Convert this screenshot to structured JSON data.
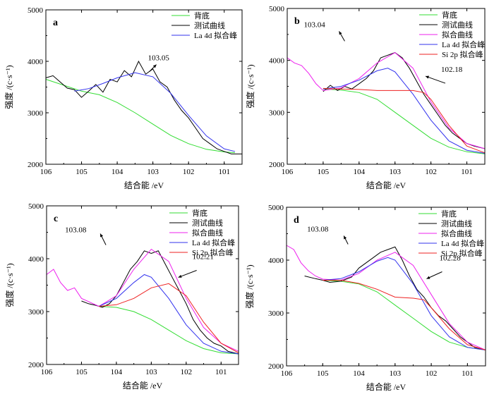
{
  "chart_data": [
    {
      "type": "line",
      "panel_label": "a",
      "xlabel": "结合能 /eV",
      "ylabel": "强度 /(c·s⁻¹)",
      "xlim": [
        106,
        100.5
      ],
      "ylim": [
        2000,
        5000
      ],
      "xticks": [
        106,
        105,
        104,
        103,
        102,
        101
      ],
      "yticks": [
        2000,
        3000,
        4000,
        5000
      ],
      "legend_position": "top-right",
      "series": [
        {
          "name": "背底",
          "color": "#33dd33",
          "x": [
            106,
            105,
            104.5,
            104,
            103.5,
            103,
            102.5,
            102,
            101.5,
            101,
            100.7
          ],
          "y": [
            3650,
            3420,
            3350,
            3200,
            3000,
            2780,
            2560,
            2400,
            2290,
            2240,
            2225
          ]
        },
        {
          "name": "测试曲线",
          "color": "#000000",
          "x": [
            106,
            105.8,
            105.6,
            105.4,
            105.2,
            105,
            104.8,
            104.6,
            104.4,
            104.2,
            104,
            103.8,
            103.6,
            103.4,
            103.2,
            103,
            102.8,
            102.6,
            102.4,
            102.2,
            102,
            101.8,
            101.6,
            101.4,
            101.2,
            101,
            100.8,
            100.5
          ],
          "y": [
            3680,
            3720,
            3600,
            3480,
            3450,
            3300,
            3420,
            3550,
            3400,
            3650,
            3600,
            3820,
            3700,
            4000,
            3750,
            3850,
            3600,
            3500,
            3250,
            3050,
            2900,
            2700,
            2500,
            2400,
            2300,
            2250,
            2200,
            2200
          ]
        },
        {
          "name": "La 4d 拟合峰",
          "color": "#3333ee",
          "x": [
            105.2,
            104.8,
            104.4,
            104,
            103.5,
            103,
            102.5,
            102,
            101.5,
            101,
            100.7
          ],
          "y": [
            3420,
            3470,
            3570,
            3680,
            3780,
            3700,
            3380,
            2950,
            2550,
            2300,
            2250
          ]
        }
      ],
      "annotations": [
        {
          "text": "103.05",
          "x": 103.1,
          "y": 3800
        }
      ]
    },
    {
      "type": "line",
      "panel_label": "b",
      "xlabel": "结合能 /eV",
      "ylabel": "强度 /(c·s⁻¹)",
      "xlim": [
        106,
        100.5
      ],
      "ylim": [
        2000,
        5000
      ],
      "xticks": [
        106,
        105,
        104,
        103,
        102,
        101
      ],
      "yticks": [
        2000,
        3000,
        4000,
        5000
      ],
      "legend_position": "top-right",
      "series": [
        {
          "name": "背底",
          "color": "#33dd33",
          "x": [
            105,
            104.5,
            104,
            103.5,
            103,
            102.5,
            102,
            101.5,
            101,
            100.5
          ],
          "y": [
            3450,
            3430,
            3380,
            3250,
            3000,
            2750,
            2500,
            2330,
            2240,
            2200
          ]
        },
        {
          "name": "测试曲线",
          "color": "#000000",
          "x": [
            105,
            104.8,
            104.6,
            104.4,
            104.2,
            104,
            103.8,
            103.6,
            103.4,
            103.2,
            103,
            102.8,
            102.6,
            102.4,
            102.2,
            102,
            101.8,
            101.6,
            101.4,
            101.2,
            101,
            100.8,
            100.5
          ],
          "y": [
            3400,
            3520,
            3420,
            3500,
            3450,
            3550,
            3650,
            3800,
            4050,
            4100,
            4150,
            4050,
            3850,
            3600,
            3350,
            3150,
            2950,
            2750,
            2600,
            2500,
            2400,
            2350,
            2300
          ]
        },
        {
          "name": "拟合曲线",
          "color": "#ee22ee",
          "x": [
            106,
            105.8,
            105.6,
            105.4,
            105.2,
            105,
            104.5,
            104,
            103.5,
            103,
            102.5,
            102,
            101.5,
            101,
            100.5
          ],
          "y": [
            4050,
            3950,
            3900,
            3750,
            3550,
            3420,
            3470,
            3650,
            3950,
            4150,
            3850,
            3200,
            2700,
            2400,
            2300
          ]
        },
        {
          "name": "La 4d 拟合峰",
          "color": "#3333ee",
          "x": [
            105,
            104.5,
            104,
            103.5,
            103.2,
            103,
            102.5,
            102,
            101.5,
            101,
            100.5
          ],
          "y": [
            3450,
            3500,
            3620,
            3800,
            3850,
            3780,
            3350,
            2850,
            2450,
            2270,
            2210
          ]
        },
        {
          "name": "Si 2p 拟合峰",
          "color": "#ee2222",
          "x": [
            105,
            104.5,
            104,
            103.5,
            103,
            102.5,
            102.2,
            102,
            101.5,
            101,
            100.5
          ],
          "y": [
            3460,
            3450,
            3440,
            3420,
            3420,
            3420,
            3380,
            3250,
            2750,
            2350,
            2220
          ]
        }
      ],
      "annotations": [
        {
          "text": "103.04",
          "x": 104.4,
          "y": 4370
        },
        {
          "text": "102.18",
          "x": 101.6,
          "y": 3560
        }
      ]
    },
    {
      "type": "line",
      "panel_label": "c",
      "xlabel": "结合能 /eV",
      "ylabel": "强度 /(c·s⁻¹)",
      "xlim": [
        106,
        100.5
      ],
      "ylim": [
        2000,
        5000
      ],
      "xticks": [
        106,
        105,
        104,
        103,
        102,
        101
      ],
      "yticks": [
        2000,
        3000,
        4000,
        5000
      ],
      "legend_position": "top-right",
      "series": [
        {
          "name": "背底",
          "color": "#33dd33",
          "x": [
            104.5,
            104,
            103.5,
            103,
            102.5,
            102,
            101.5,
            101,
            100.5
          ],
          "y": [
            3100,
            3080,
            3000,
            2850,
            2650,
            2450,
            2300,
            2220,
            2200
          ]
        },
        {
          "name": "测试曲线",
          "color": "#000000",
          "x": [
            105,
            104.8,
            104.6,
            104.4,
            104.2,
            104,
            103.8,
            103.6,
            103.4,
            103.2,
            103,
            102.8,
            102.6,
            102.4,
            102.2,
            102,
            101.8,
            101.6,
            101.4,
            101.2,
            101,
            100.8,
            100.5
          ],
          "y": [
            3200,
            3150,
            3120,
            3080,
            3150,
            3300,
            3550,
            3800,
            3950,
            4150,
            4100,
            4150,
            3900,
            3650,
            3400,
            3150,
            2850,
            2650,
            2500,
            2400,
            2350,
            2250,
            2200
          ]
        },
        {
          "name": "拟合曲线",
          "color": "#ee22ee",
          "x": [
            106,
            105.8,
            105.6,
            105.4,
            105.2,
            105,
            104.5,
            104,
            103.5,
            103,
            102.5,
            102,
            101.5,
            101,
            100.5
          ],
          "y": [
            3700,
            3800,
            3550,
            3400,
            3450,
            3250,
            3100,
            3300,
            3800,
            4180,
            3950,
            3250,
            2700,
            2400,
            2250
          ]
        },
        {
          "name": "La 4d 拟合峰",
          "color": "#3333ee",
          "x": [
            104.5,
            104,
            103.5,
            103.2,
            103,
            102.5,
            102,
            101.5,
            101,
            100.5
          ],
          "y": [
            3100,
            3250,
            3550,
            3700,
            3650,
            3250,
            2750,
            2400,
            2250,
            2200
          ]
        },
        {
          "name": "Si 2p 拟合峰",
          "color": "#ee2222",
          "x": [
            104.5,
            104,
            103.5,
            103,
            102.5,
            102,
            101.5,
            101,
            100.5
          ],
          "y": [
            3100,
            3130,
            3250,
            3450,
            3530,
            3300,
            2800,
            2400,
            2220
          ]
        }
      ],
      "annotations": [
        {
          "text": "103.08",
          "x": 104.3,
          "y": 4260
        },
        {
          "text": "102.21",
          "x": 101.7,
          "y": 3780
        }
      ]
    },
    {
      "type": "line",
      "panel_label": "d",
      "xlabel": "结合能 /eV",
      "ylabel": "强度 /(c·s⁻¹)",
      "xlim": [
        106,
        100.5
      ],
      "ylim": [
        2000,
        5000
      ],
      "xticks": [
        106,
        105,
        104,
        103,
        102,
        101
      ],
      "yticks": [
        2000,
        3000,
        4000,
        5000
      ],
      "legend_position": "top-right",
      "series": [
        {
          "name": "背底",
          "color": "#33dd33",
          "x": [
            105,
            104.5,
            104,
            103.5,
            103,
            102.5,
            102,
            101.5,
            101,
            100.5
          ],
          "y": [
            3620,
            3600,
            3550,
            3400,
            3150,
            2900,
            2650,
            2450,
            2350,
            2300
          ]
        },
        {
          "name": "测试曲线",
          "color": "#000000",
          "x": [
            105.5,
            105.2,
            105,
            104.8,
            104.5,
            104.2,
            104,
            103.8,
            103.6,
            103.4,
            103.2,
            103,
            102.8,
            102.6,
            102.4,
            102.2,
            102,
            101.8,
            101.6,
            101.4,
            101.2,
            101,
            100.8,
            100.5
          ],
          "y": [
            3700,
            3650,
            3620,
            3580,
            3600,
            3680,
            3850,
            3950,
            4050,
            4150,
            4200,
            4250,
            4000,
            3700,
            3450,
            3300,
            3100,
            2950,
            2850,
            2700,
            2550,
            2450,
            2350,
            2300
          ]
        },
        {
          "name": "拟合曲线",
          "color": "#ee22ee",
          "x": [
            106,
            105.8,
            105.6,
            105.4,
            105.2,
            105,
            104.5,
            104,
            103.5,
            103,
            102.5,
            102,
            101.5,
            101,
            100.5
          ],
          "y": [
            4280,
            4200,
            3950,
            3800,
            3700,
            3640,
            3620,
            3750,
            4000,
            4150,
            3900,
            3350,
            2800,
            2450,
            2300
          ]
        },
        {
          "name": "La 4d 拟合峰",
          "color": "#3333ee",
          "x": [
            105,
            104.5,
            104,
            103.5,
            103.2,
            103,
            102.5,
            102,
            101.5,
            101,
            100.5
          ],
          "y": [
            3620,
            3650,
            3780,
            3980,
            4050,
            4000,
            3550,
            2950,
            2550,
            2350,
            2300
          ]
        },
        {
          "name": "Si 2p 拟合峰",
          "color": "#ee2222",
          "x": [
            105,
            104.5,
            104,
            103.5,
            103,
            102.5,
            102.2,
            102,
            101.5,
            101,
            100.5
          ],
          "y": [
            3620,
            3620,
            3560,
            3450,
            3300,
            3280,
            3250,
            3100,
            2700,
            2400,
            2300
          ]
        }
      ],
      "annotations": [
        {
          "text": "103.08",
          "x": 104.3,
          "y": 4300
        },
        {
          "text": "102.28",
          "x": 101.7,
          "y": 3780
        }
      ]
    }
  ]
}
